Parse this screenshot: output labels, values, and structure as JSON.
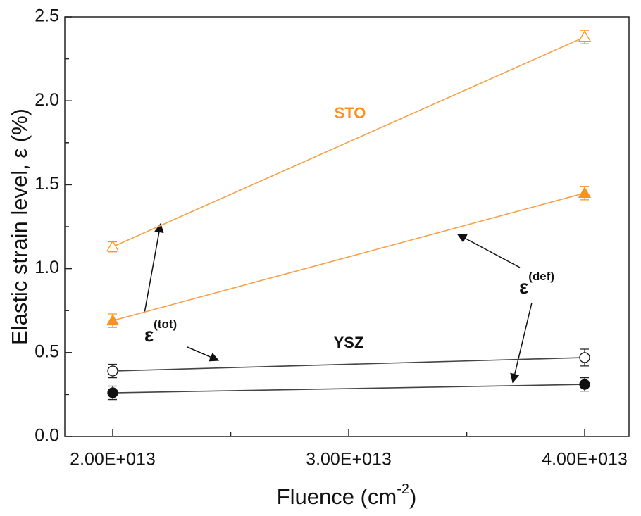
{
  "chart_data": {
    "type": "scatter",
    "xlabel": {
      "text": "Fluence (cm",
      "sup": "-2",
      "tail": ")"
    },
    "ylabel": "Elastic strain level, ε (%)",
    "x": [
      20000000000000.0,
      40000000000000.0
    ],
    "series": [
      {
        "color": "#f7a04a",
        "marker": "open-triangle",
        "values": [
          1.13,
          2.38
        ],
        "errors": [
          0.03,
          0.04
        ]
      },
      {
        "color": "#f7a04a",
        "marker": "filled-triangle",
        "values": [
          0.69,
          1.45
        ],
        "errors": [
          0.04,
          0.04
        ]
      },
      {
        "color": "#444444",
        "marker": "open-circle",
        "values": [
          0.39,
          0.47
        ],
        "errors": [
          0.04,
          0.05
        ]
      },
      {
        "color": "#444444",
        "marker": "filled-circle",
        "values": [
          0.26,
          0.31
        ],
        "errors": [
          0.04,
          0.04
        ]
      }
    ],
    "xlim": [
      17970000000000.0,
      41880000000000.0
    ],
    "xticks": [
      {
        "value": 20000000000000.0,
        "label": "2.00E+013"
      },
      {
        "value": 30000000000000.0,
        "label": "3.00E+013"
      },
      {
        "value": 40000000000000.0,
        "label": "4.00E+013"
      }
    ],
    "xminorticks": [
      25000000000000.0,
      35000000000000.0
    ],
    "ylim": [
      0,
      2.5
    ],
    "yticks": [
      {
        "value": 0,
        "label": "0.0"
      },
      0.5,
      {
        "value": 1,
        "label": "1.0"
      },
      1.5,
      {
        "value": 2,
        "label": "2.0"
      },
      2.5
    ],
    "yminorticks": [
      0.25,
      0.75,
      1.25,
      1.75,
      2.25
    ],
    "annotations": [
      {
        "text": "STO",
        "color": "#f7931e"
      },
      {
        "text": "YSZ",
        "color": "#111111"
      },
      {
        "text": "ε",
        "sup": "(tot)",
        "color": "#111111"
      },
      {
        "text": "ε",
        "sup": "(def)",
        "color": "#111111"
      }
    ]
  }
}
